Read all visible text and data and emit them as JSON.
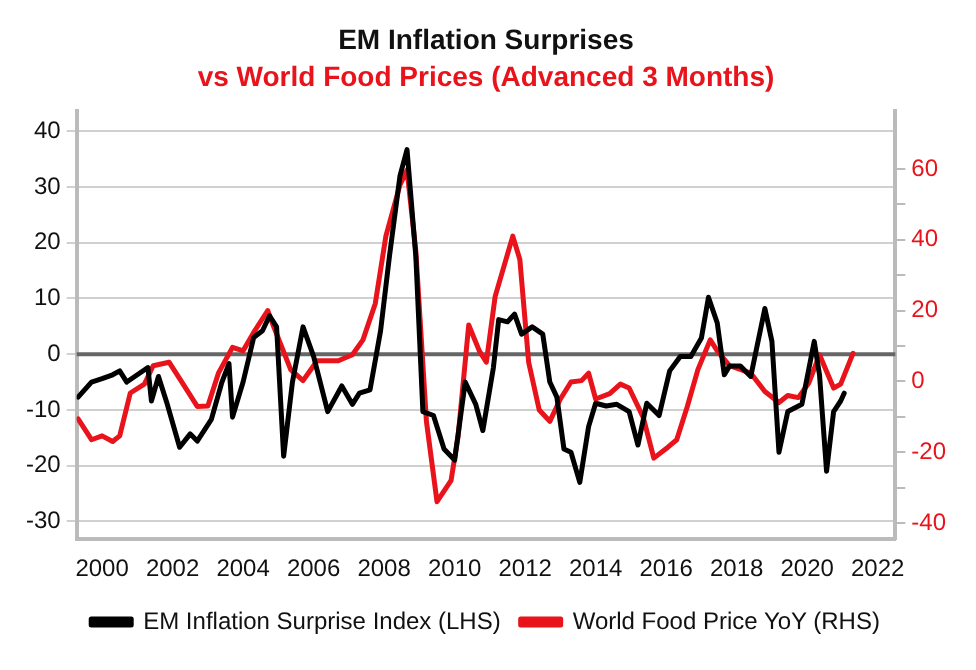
{
  "chart_data": {
    "type": "line",
    "title": "EM Inflation Surprises",
    "subtitle": "vs World Food Prices (Advanced 3 Months)",
    "xlim": [
      1999.28,
      2022.5
    ],
    "xticks": [
      2000,
      2002,
      2004,
      2006,
      2008,
      2010,
      2012,
      2014,
      2016,
      2018,
      2020,
      2022
    ],
    "ylim": [
      -33.2,
      43.6
    ],
    "yticks": [
      -30,
      -20,
      -10,
      0,
      10,
      20,
      30,
      40
    ],
    "y2lim": [
      -44.6,
      76.3
    ],
    "y2ticks": [
      -40,
      {
        "value": -30,
        "label": null
      },
      -20,
      {
        "value": -10,
        "label": null
      },
      0,
      {
        "value": 10,
        "label": null
      },
      20,
      {
        "value": 30,
        "label": null
      },
      40,
      {
        "value": 50,
        "label": null
      },
      60
    ],
    "grid": "y",
    "legend": "bottom",
    "marker": "none",
    "line_style": "solid",
    "ref_lines": [
      {
        "axis": "y",
        "value": 0,
        "color": "#666666"
      }
    ],
    "series": [
      {
        "name": "EM Inflation Surprise Index (LHS)",
        "color": "#000000",
        "x": [
          1999.32,
          1999.7,
          2000,
          2000.3,
          2000.5,
          2000.7,
          2001,
          2001.3,
          2001.4,
          2001.6,
          2001.85,
          2002.2,
          2002.5,
          2002.7,
          2003.1,
          2003.4,
          2003.6,
          2003.7,
          2004,
          2004.3,
          2004.55,
          2004.75,
          2004.95,
          2005.15,
          2005.4,
          2005.7,
          2006,
          2006.4,
          2006.8,
          2007.1,
          2007.3,
          2007.6,
          2007.9,
          2008.15,
          2008.45,
          2008.65,
          2008.9,
          2009.1,
          2009.4,
          2009.7,
          2010,
          2010.3,
          2010.6,
          2010.8,
          2011.1,
          2011.25,
          2011.5,
          2011.7,
          2011.9,
          2012.2,
          2012.5,
          2012.7,
          2012.9,
          2013.1,
          2013.3,
          2013.55,
          2013.8,
          2014,
          2014.3,
          2014.6,
          2014.95,
          2015.2,
          2015.45,
          2015.8,
          2016.1,
          2016.4,
          2016.7,
          2017,
          2017.2,
          2017.45,
          2017.65,
          2017.8,
          2018.1,
          2018.4,
          2018.8,
          2019,
          2019.2,
          2019.45,
          2019.85,
          2020.2,
          2020.35,
          2020.55,
          2020.75,
          2020.95,
          2021.05
        ],
        "values": [
          -7.7,
          -5,
          -4.4,
          -3.7,
          -3,
          -5,
          -3.7,
          -2.4,
          -8.4,
          -4,
          -9,
          -16.7,
          -14.3,
          -15.6,
          -11.7,
          -5,
          -1.7,
          -11.3,
          -5,
          3,
          4.2,
          6.9,
          4.9,
          -18.3,
          -5,
          4.9,
          -0.4,
          -10.3,
          -5.7,
          -9,
          -7,
          -6.4,
          4.2,
          17.5,
          32,
          36.7,
          17.5,
          -10.3,
          -11,
          -17,
          -19,
          -5,
          -9,
          -13.7,
          -2.4,
          6.2,
          5.8,
          7.2,
          3.6,
          4.9,
          3.6,
          -5,
          -7.7,
          -17,
          -17.6,
          -23,
          -13,
          -8.8,
          -9.3,
          -9,
          -10.3,
          -16.3,
          -8.8,
          -11,
          -3,
          -0.4,
          -0.4,
          2.9,
          10.2,
          5.6,
          -3.7,
          -2.1,
          -2.1,
          -4,
          8.2,
          2.3,
          -17.6,
          -10.3,
          -9,
          2.3,
          -3.7,
          -21,
          -10.3,
          -8.4,
          -7
        ]
      },
      {
        "name": "World Food Price YoY (RHS)",
        "color": "#e8131b",
        "axis": "y2",
        "x": [
          1999.32,
          1999.7,
          2000,
          2000.3,
          2000.5,
          2000.8,
          2001.2,
          2001.45,
          2001.9,
          2002.3,
          2002.7,
          2003,
          2003.3,
          2003.7,
          2004,
          2004.3,
          2004.7,
          2004.85,
          2005.35,
          2005.7,
          2006.1,
          2006.7,
          2007.1,
          2007.4,
          2007.75,
          2008.05,
          2008.45,
          2008.65,
          2008.9,
          2009.2,
          2009.5,
          2009.9,
          2010.1,
          2010.4,
          2010.7,
          2010.9,
          2011.15,
          2011.65,
          2011.85,
          2012.1,
          2012.4,
          2012.7,
          2013,
          2013.3,
          2013.6,
          2013.8,
          2014,
          2014.4,
          2014.7,
          2014.95,
          2015.35,
          2015.65,
          2016.05,
          2016.3,
          2016.6,
          2016.9,
          2017.25,
          2017.45,
          2017.8,
          2018.4,
          2018.8,
          2019.2,
          2019.45,
          2019.75,
          2020.05,
          2020.35,
          2020.75,
          2020.95,
          2021.3
        ],
        "values": [
          -10.6,
          -16.5,
          -15.4,
          -17,
          -15.4,
          -3.3,
          -0.8,
          4.4,
          5.4,
          -0.8,
          -7.1,
          -7,
          2.3,
          9.6,
          8.6,
          13.8,
          20,
          15.9,
          3.3,
          0.2,
          5.8,
          5.8,
          7.5,
          11.7,
          22,
          41,
          55.5,
          59.7,
          36.7,
          -11.3,
          -34,
          -28,
          -15.4,
          15.9,
          8.6,
          5.4,
          24,
          41,
          34.4,
          5.4,
          -8.1,
          -11.3,
          -5,
          -0.2,
          0.2,
          2.3,
          -5,
          -3.5,
          -0.8,
          -1.9,
          -10.2,
          -21.7,
          -18.6,
          -16.5,
          -7.1,
          3.3,
          11.7,
          8.6,
          4.4,
          2.3,
          -2.9,
          -6,
          -4,
          -4.6,
          -0.4,
          7.5,
          -1.9,
          -0.8,
          7.9
        ]
      }
    ]
  }
}
